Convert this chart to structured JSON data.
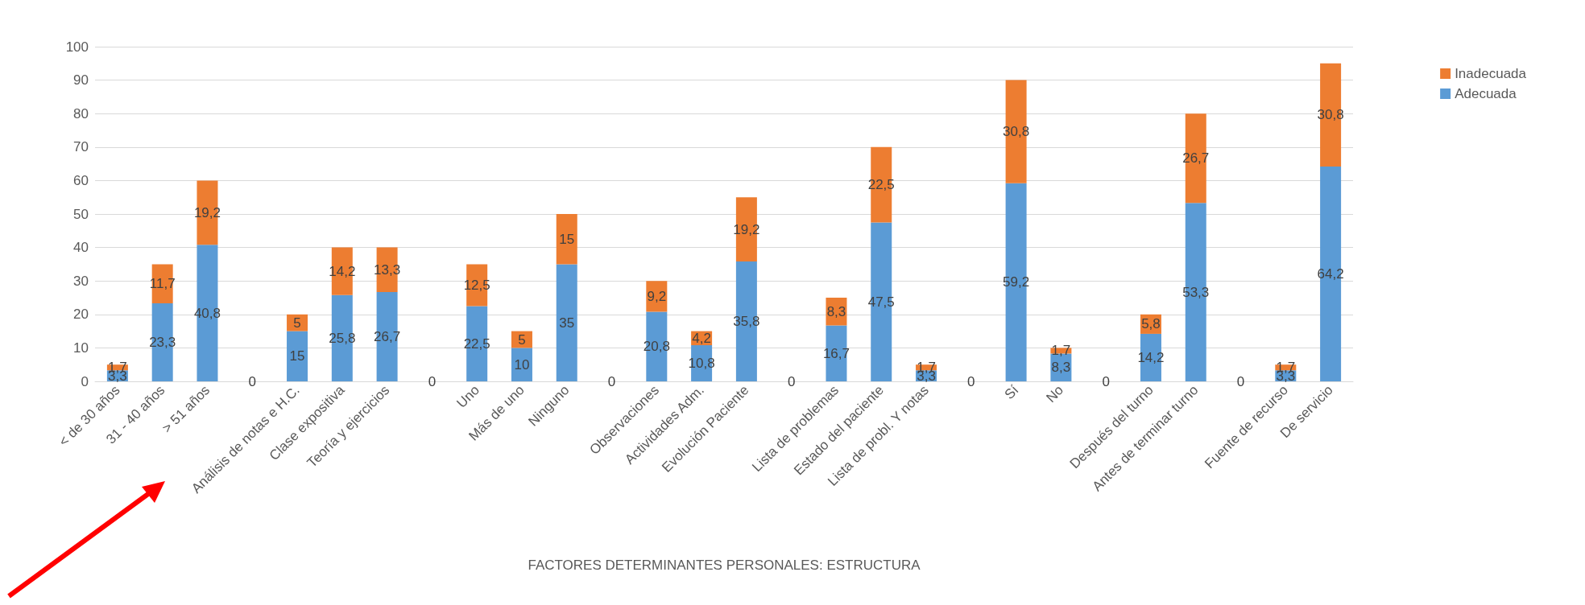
{
  "chart_data": {
    "type": "bar",
    "stacked": true,
    "xlabel": "FACTORES DETERMINANTES PERSONALES: ESTRUCTURA",
    "categories": [
      "< de 30 años",
      "31 - 40 años",
      "> 51 años",
      null,
      "Análisis de notas e H.C.",
      "Clase expositiva",
      "Teoría y ejercicios",
      null,
      "Uno",
      "Más de uno",
      "Ninguno",
      null,
      "Observaciones",
      "Actividades Adm.",
      "Evolución Paciente",
      null,
      "Lista de problemas",
      "Estado del paciente",
      "Lista de probl. Y notas",
      null,
      "Sí",
      "No",
      null,
      "Después del turno",
      "Antes de terminar turno",
      null,
      "Fuente de recurso",
      "De servicio"
    ],
    "series": [
      {
        "name": "Adecuada",
        "color": "#5b9bd5",
        "values": [
          3.3,
          23.3,
          40.8,
          0,
          15,
          25.8,
          26.7,
          0,
          22.5,
          10,
          35,
          0,
          20.8,
          10.8,
          35.8,
          0,
          16.7,
          47.5,
          3.3,
          0,
          59.2,
          8.3,
          0,
          14.2,
          53.3,
          0,
          3.3,
          64.2
        ],
        "value_labels": [
          "3,3",
          "23,3",
          "40,8",
          "0",
          "15",
          "25,8",
          "26,7",
          "0",
          "22,5",
          "10",
          "35",
          "0",
          "20,8",
          "10,8",
          "35,8",
          "0",
          "16,7",
          "47,5",
          "3,3",
          "0",
          "59,2",
          "8,3",
          "0",
          "14,2",
          "53,3",
          "0",
          "3,3",
          "64,2"
        ]
      },
      {
        "name": "Inadecuada",
        "color": "#ed7d31",
        "values": [
          1.7,
          11.7,
          19.2,
          0,
          5,
          14.2,
          13.3,
          0,
          12.5,
          5,
          15,
          0,
          9.2,
          4.2,
          19.2,
          0,
          8.3,
          22.5,
          1.7,
          0,
          30.8,
          1.7,
          0,
          5.8,
          26.7,
          0,
          1.7,
          30.8
        ],
        "value_labels": [
          "1,7",
          "11,7",
          "19,2",
          null,
          "5",
          "14,2",
          "13,3",
          null,
          "12,5",
          "5",
          "15",
          null,
          "9,2",
          "4,2",
          "19,2",
          null,
          "8,3",
          "22,5",
          "1,7",
          null,
          "30,8",
          "1,7",
          null,
          "5,8",
          "26,7",
          null,
          "1,7",
          "30,8"
        ]
      }
    ],
    "ylim": [
      0,
      100
    ],
    "yticks": [
      0,
      10,
      20,
      30,
      40,
      50,
      60,
      70,
      80,
      90,
      100
    ],
    "grid": "y",
    "legend": "right"
  }
}
